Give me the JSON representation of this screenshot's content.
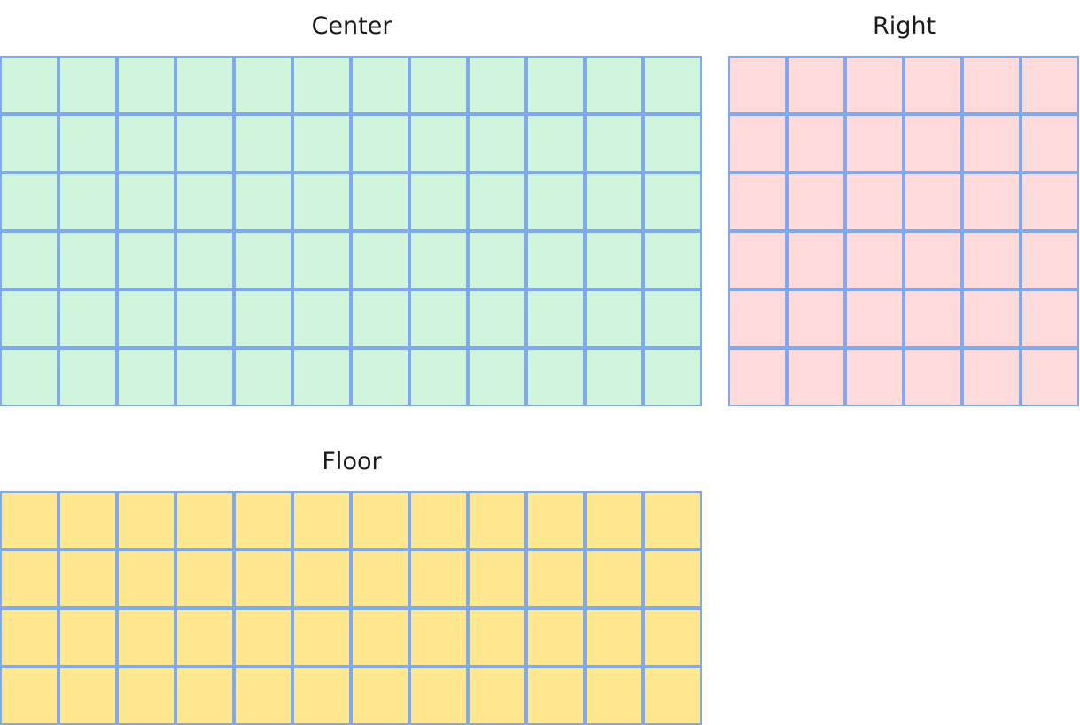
{
  "sections": [
    {
      "id": "center",
      "title": "Center",
      "rows": 6,
      "cols": 12,
      "color": "#cff5dc"
    },
    {
      "id": "right",
      "title": "Right",
      "rows": 6,
      "cols": 6,
      "color": "#ffdbdb"
    },
    {
      "id": "floor",
      "title": "Floor",
      "rows": 4,
      "cols": 12,
      "color": "#ffe88f"
    }
  ],
  "cell_border_color": "#7fa9f3"
}
